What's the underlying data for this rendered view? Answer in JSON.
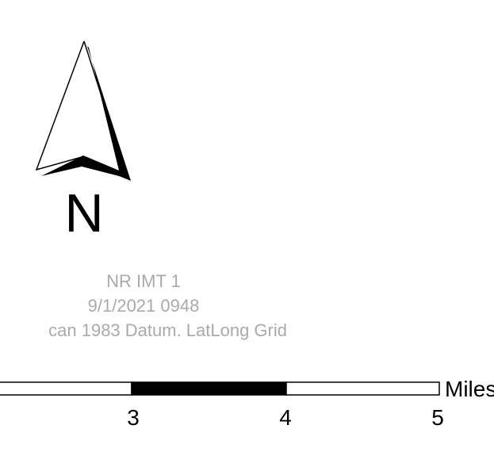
{
  "north_arrow": {
    "letter": "N"
  },
  "map_info": {
    "line1": "NR IMT 1",
    "line2": "9/1/2021 0948",
    "line3": "can 1983 Datum. LatLong Grid"
  },
  "scale_bar": {
    "unit": "Miles",
    "labels": [
      "3",
      "4",
      "5"
    ],
    "bar_color": "#000000",
    "text_color": "#000000"
  },
  "colors": {
    "info_text": "#aaaaaa",
    "background": "#ffffff"
  }
}
